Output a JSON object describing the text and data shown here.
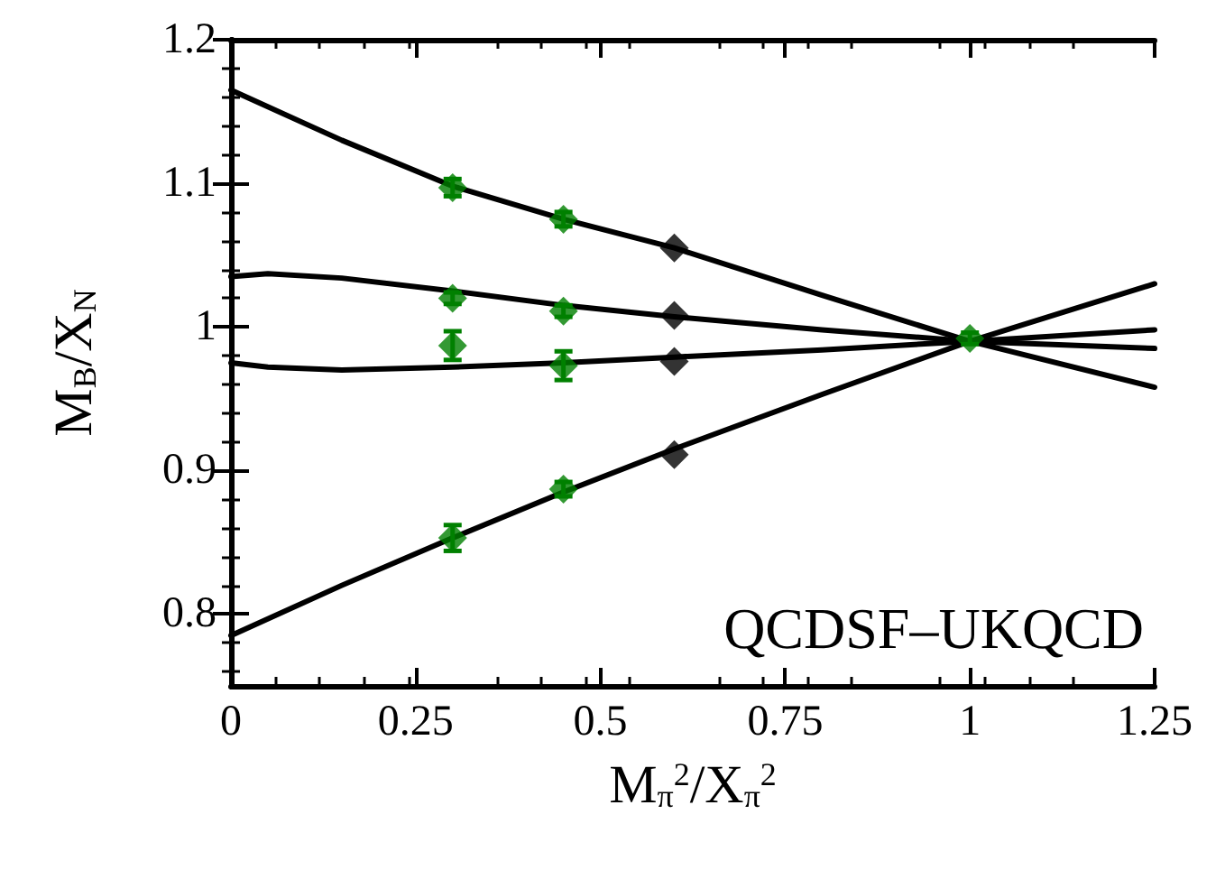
{
  "chart_data": {
    "type": "scatter",
    "xlabel": "M$_{π}$$^{2}$/X$_{π}$$^{2}$",
    "ylabel": "M$_{B}$/X$_{N}$",
    "xlim": [
      0,
      1.25
    ],
    "xticks": [
      0,
      0.25,
      0.5,
      0.75,
      1,
      1.25
    ],
    "ylim": [
      0.75,
      1.2
    ],
    "yticks": [
      0.8,
      0.9,
      1,
      1.1,
      1.2
    ],
    "grid": false,
    "annotations": [
      "QCDSF–UKQCD"
    ],
    "series": [
      {
        "type": "line",
        "color": "#000000",
        "marker": "none",
        "x": [
          0,
          0.15,
          0.3,
          0.45,
          0.6,
          0.8,
          1,
          1.25
        ],
        "values": [
          1.165,
          1.13,
          1.098,
          1.075,
          1.055,
          1.022,
          0.99,
          0.958
        ]
      },
      {
        "type": "line",
        "color": "#000000",
        "marker": "none",
        "x": [
          0,
          0.05,
          0.15,
          0.3,
          0.45,
          0.6,
          0.8,
          1,
          1.25
        ],
        "values": [
          1.035,
          1.037,
          1.034,
          1.025,
          1.015,
          1.007,
          0.998,
          0.99,
          0.985
        ]
      },
      {
        "type": "line",
        "color": "#000000",
        "marker": "none",
        "x": [
          0,
          0.05,
          0.15,
          0.3,
          0.45,
          0.6,
          0.8,
          1,
          1.25
        ],
        "values": [
          0.975,
          0.972,
          0.97,
          0.972,
          0.975,
          0.979,
          0.984,
          0.99,
          0.998
        ]
      },
      {
        "type": "line",
        "color": "#000000",
        "marker": "none",
        "x": [
          0,
          0.15,
          0.3,
          0.45,
          0.6,
          0.8,
          1,
          1.25
        ],
        "values": [
          0.785,
          0.82,
          0.853,
          0.885,
          0.915,
          0.953,
          0.99,
          1.03
        ]
      },
      {
        "color": "#000000",
        "marker": "diamond",
        "x": [
          0.6,
          0.6,
          0.6,
          0.6
        ],
        "values": [
          1.055,
          1.008,
          0.976,
          0.911
        ]
      },
      {
        "color": "#008000",
        "marker": "diamond",
        "x": [
          0.3,
          0.3,
          0.3,
          0.3,
          0.45,
          0.45,
          0.45,
          0.45,
          1
        ],
        "values": [
          1.097,
          1.02,
          0.987,
          0.853,
          1.075,
          1.011,
          0.973,
          0.887,
          0.992
        ],
        "errors": [
          0.006,
          0.004,
          0.01,
          0.009,
          0.005,
          0.004,
          0.01,
          0.005,
          0.004
        ]
      }
    ]
  }
}
